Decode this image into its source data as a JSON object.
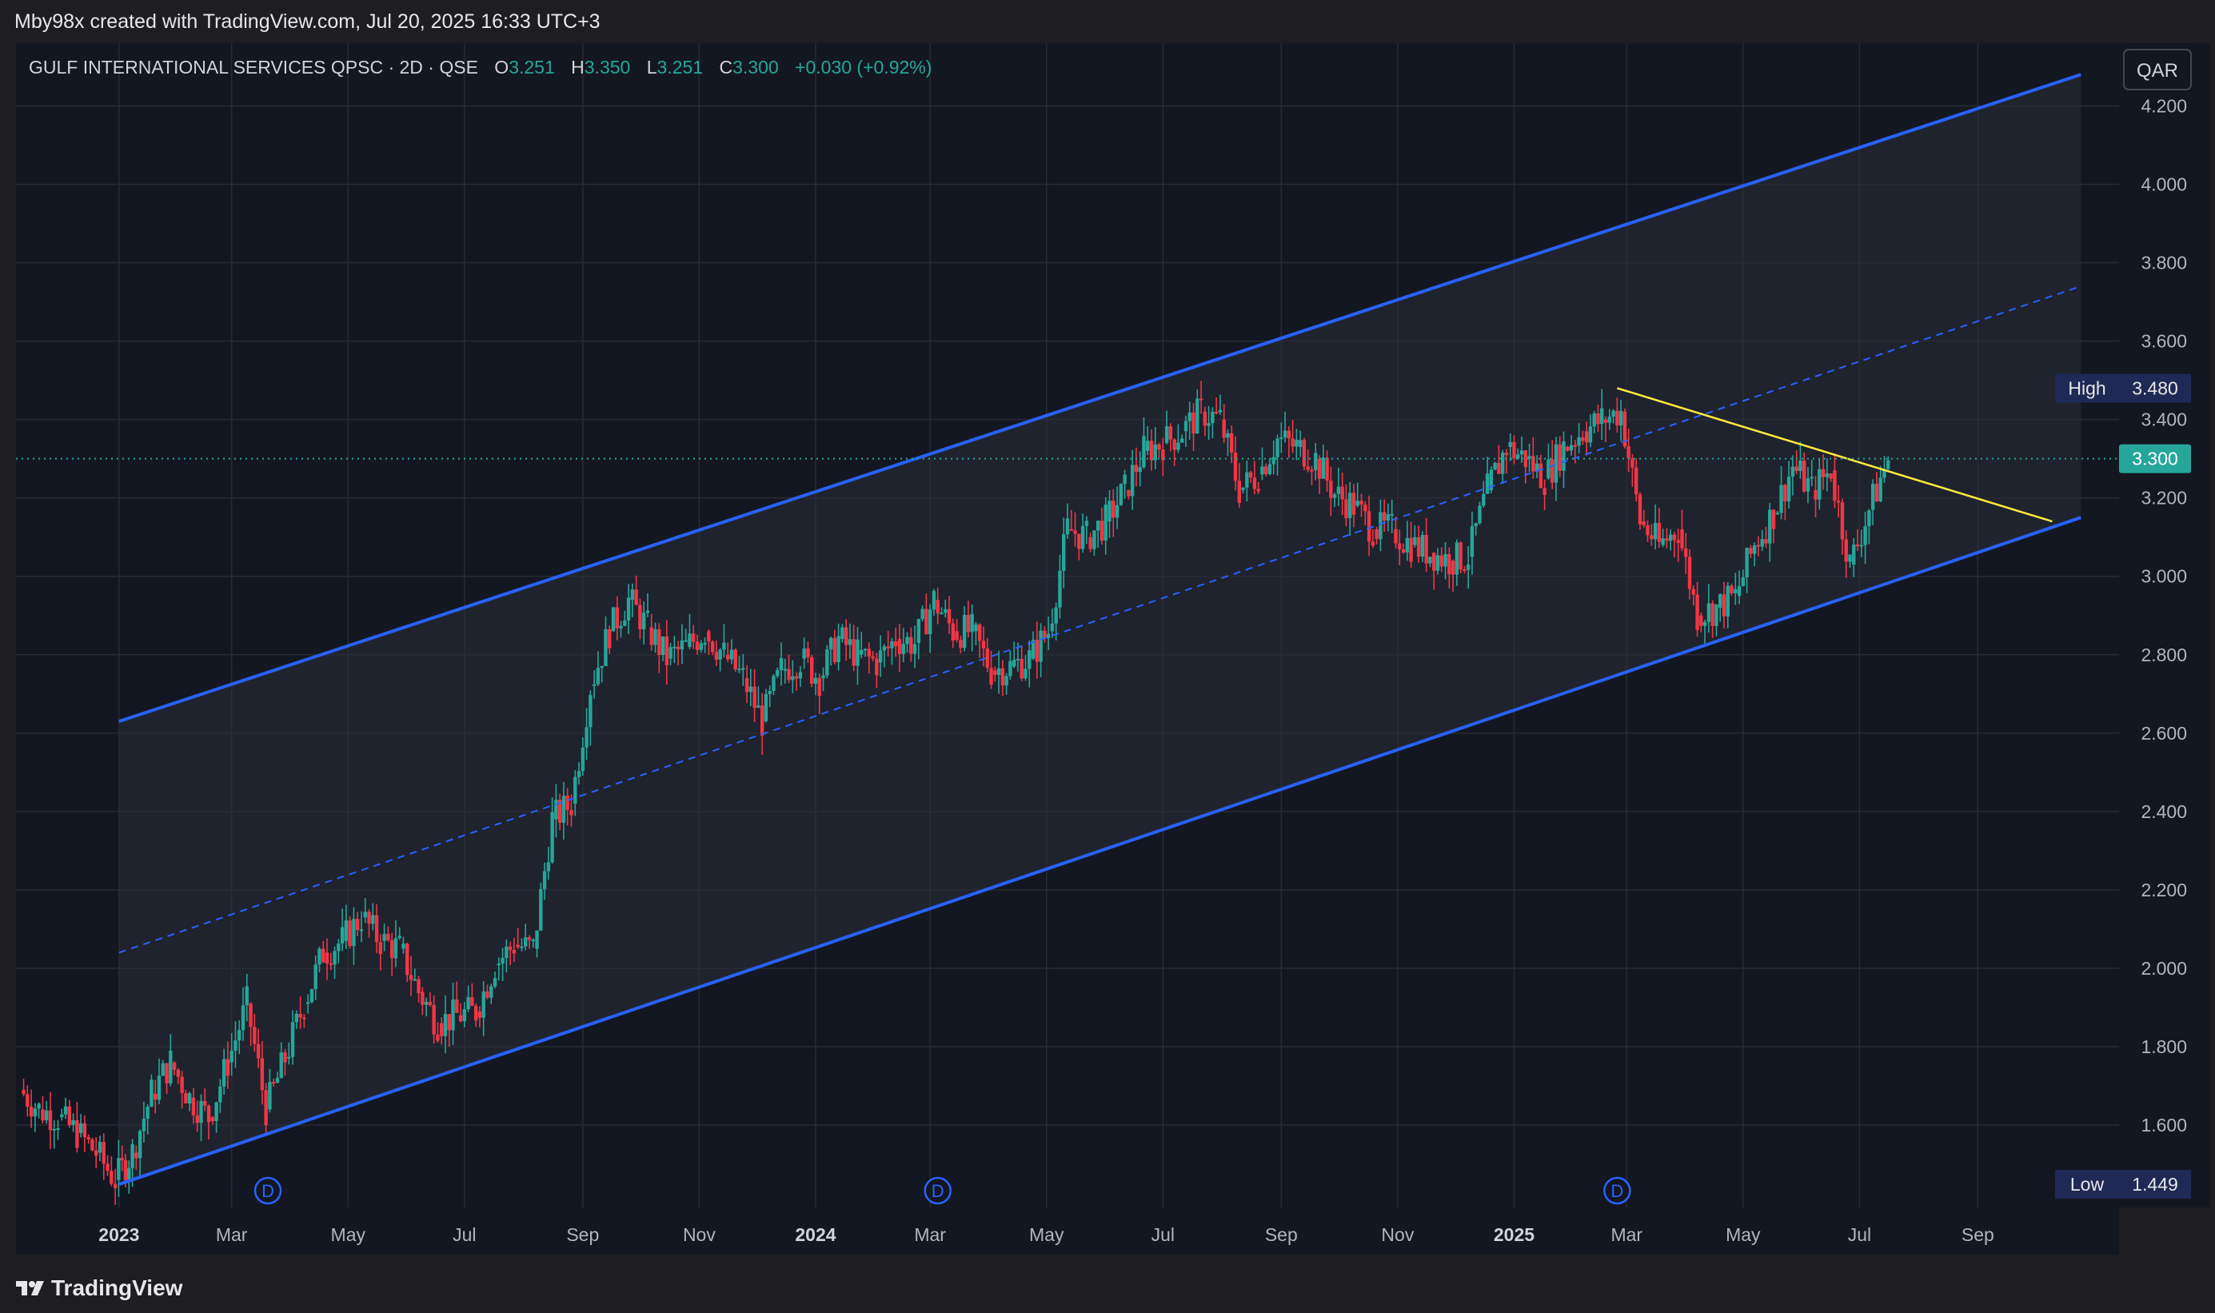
{
  "header": {
    "credit": "Mby98x created with TradingView.com, Jul 20, 2025 16:33 UTC+3"
  },
  "legend": {
    "symbol": "GULF INTERNATIONAL SERVICES QPSC · 2D · QSE",
    "o_label": "O",
    "o_value": "3.251",
    "h_label": "H",
    "h_value": "3.350",
    "l_label": "L",
    "l_value": "3.251",
    "c_label": "C",
    "c_value": "3.300",
    "change": "+0.030 (+0.92%)"
  },
  "footer": {
    "brand": "TradingView"
  },
  "colors": {
    "up": "#26a69a",
    "down": "#f23645",
    "channel": "#2962ff",
    "trendline": "#ffeb3b",
    "grid": "#2a2b30",
    "plot_bg": "#131722",
    "axis_text": "#b2b5be"
  },
  "chart_data": {
    "type": "candlestick",
    "currency": "QAR",
    "y_axis": {
      "ticks": [
        "4.200",
        "4.000",
        "3.800",
        "3.600",
        "3.400",
        "3.200",
        "3.000",
        "2.800",
        "2.600",
        "2.400",
        "2.200",
        "2.000",
        "1.800",
        "1.600"
      ],
      "range": [
        1.39,
        4.36
      ]
    },
    "x_axis": {
      "range": [
        "2022-11-08",
        "2025-11-14"
      ],
      "ticks": [
        {
          "date": "2023-01-01",
          "label": "2023",
          "bold": true
        },
        {
          "date": "2023-03-01",
          "label": "Mar"
        },
        {
          "date": "2023-05-01",
          "label": "May"
        },
        {
          "date": "2023-07-01",
          "label": "Jul"
        },
        {
          "date": "2023-09-01",
          "label": "Sep"
        },
        {
          "date": "2023-11-01",
          "label": "Nov"
        },
        {
          "date": "2024-01-01",
          "label": "2024",
          "bold": true
        },
        {
          "date": "2024-03-01",
          "label": "Mar"
        },
        {
          "date": "2024-05-01",
          "label": "May"
        },
        {
          "date": "2024-07-01",
          "label": "Jul"
        },
        {
          "date": "2024-09-01",
          "label": "Sep"
        },
        {
          "date": "2024-11-01",
          "label": "Nov"
        },
        {
          "date": "2025-01-01",
          "label": "2025",
          "bold": true
        },
        {
          "date": "2025-03-01",
          "label": "Mar"
        },
        {
          "date": "2025-05-01",
          "label": "May"
        },
        {
          "date": "2025-07-01",
          "label": "Jul"
        },
        {
          "date": "2025-09-01",
          "label": "Sep"
        }
      ]
    },
    "price_labels": [
      {
        "name": "High",
        "value": "3.480",
        "price": 3.48
      },
      {
        "name": "",
        "value": "3.300",
        "price": 3.3,
        "current": true
      },
      {
        "name": "Low",
        "value": "1.449",
        "price": 1.449
      }
    ],
    "close_series": [
      [
        "2022-11-10",
        1.69
      ],
      [
        "2022-11-20",
        1.64
      ],
      [
        "2022-11-30",
        1.62
      ],
      [
        "2022-12-10",
        1.58
      ],
      [
        "2022-12-20",
        1.53
      ],
      [
        "2022-12-30",
        1.46
      ],
      [
        "2023-01-08",
        1.53
      ],
      [
        "2023-01-18",
        1.68
      ],
      [
        "2023-01-28",
        1.76
      ],
      [
        "2023-02-07",
        1.67
      ],
      [
        "2023-02-17",
        1.62
      ],
      [
        "2023-02-27",
        1.76
      ],
      [
        "2023-03-09",
        1.91
      ],
      [
        "2023-03-19",
        1.64
      ],
      [
        "2023-03-29",
        1.77
      ],
      [
        "2023-04-08",
        1.91
      ],
      [
        "2023-04-18",
        2.04
      ],
      [
        "2023-04-28",
        2.07
      ],
      [
        "2023-05-08",
        2.13
      ],
      [
        "2023-05-18",
        2.07
      ],
      [
        "2023-05-28",
        2.05
      ],
      [
        "2023-06-07",
        1.94
      ],
      [
        "2023-06-17",
        1.86
      ],
      [
        "2023-06-27",
        1.88
      ],
      [
        "2023-07-07",
        1.89
      ],
      [
        "2023-07-17",
        2.01
      ],
      [
        "2023-07-27",
        2.06
      ],
      [
        "2023-08-06",
        2.05
      ],
      [
        "2023-08-16",
        2.38
      ],
      [
        "2023-08-26",
        2.42
      ],
      [
        "2023-09-05",
        2.72
      ],
      [
        "2023-09-15",
        2.86
      ],
      [
        "2023-09-25",
        2.94
      ],
      [
        "2023-10-05",
        2.87
      ],
      [
        "2023-10-15",
        2.79
      ],
      [
        "2023-10-25",
        2.82
      ],
      [
        "2023-11-04",
        2.86
      ],
      [
        "2023-11-14",
        2.8
      ],
      [
        "2023-11-24",
        2.74
      ],
      [
        "2023-12-04",
        2.63
      ],
      [
        "2023-12-14",
        2.76
      ],
      [
        "2023-12-24",
        2.79
      ],
      [
        "2024-01-03",
        2.74
      ],
      [
        "2024-01-13",
        2.84
      ],
      [
        "2024-01-23",
        2.8
      ],
      [
        "2024-02-02",
        2.78
      ],
      [
        "2024-02-12",
        2.84
      ],
      [
        "2024-02-22",
        2.83
      ],
      [
        "2024-03-03",
        2.94
      ],
      [
        "2024-03-13",
        2.86
      ],
      [
        "2024-03-23",
        2.86
      ],
      [
        "2024-04-02",
        2.76
      ],
      [
        "2024-04-12",
        2.77
      ],
      [
        "2024-04-22",
        2.79
      ],
      [
        "2024-05-02",
        2.86
      ],
      [
        "2024-05-12",
        3.12
      ],
      [
        "2024-05-22",
        3.1
      ],
      [
        "2024-06-01",
        3.14
      ],
      [
        "2024-06-11",
        3.22
      ],
      [
        "2024-06-21",
        3.32
      ],
      [
        "2024-07-01",
        3.34
      ],
      [
        "2024-07-11",
        3.37
      ],
      [
        "2024-07-21",
        3.42
      ],
      [
        "2024-07-31",
        3.4
      ],
      [
        "2024-08-10",
        3.22
      ],
      [
        "2024-08-20",
        3.26
      ],
      [
        "2024-08-30",
        3.35
      ],
      [
        "2024-09-09",
        3.33
      ],
      [
        "2024-09-19",
        3.3
      ],
      [
        "2024-09-29",
        3.21
      ],
      [
        "2024-10-09",
        3.18
      ],
      [
        "2024-10-19",
        3.12
      ],
      [
        "2024-10-29",
        3.12
      ],
      [
        "2024-11-08",
        3.08
      ],
      [
        "2024-11-18",
        3.06
      ],
      [
        "2024-11-28",
        3.04
      ],
      [
        "2024-12-08",
        3.05
      ],
      [
        "2024-12-18",
        3.22
      ],
      [
        "2024-12-28",
        3.33
      ],
      [
        "2025-01-07",
        3.3
      ],
      [
        "2025-01-17",
        3.25
      ],
      [
        "2025-01-27",
        3.33
      ],
      [
        "2025-02-06",
        3.37
      ],
      [
        "2025-02-16",
        3.4
      ],
      [
        "2025-02-26",
        3.42
      ],
      [
        "2025-03-08",
        3.14
      ],
      [
        "2025-03-18",
        3.08
      ],
      [
        "2025-03-28",
        3.12
      ],
      [
        "2025-04-07",
        2.9
      ],
      [
        "2025-04-17",
        2.92
      ],
      [
        "2025-04-27",
        2.95
      ],
      [
        "2025-05-07",
        3.08
      ],
      [
        "2025-05-17",
        3.16
      ],
      [
        "2025-05-27",
        3.28
      ],
      [
        "2025-06-06",
        3.22
      ],
      [
        "2025-06-16",
        3.27
      ],
      [
        "2025-06-26",
        3.03
      ],
      [
        "2025-07-06",
        3.17
      ],
      [
        "2025-07-16",
        3.3
      ]
    ],
    "annotations": {
      "channel_upper": [
        [
          "2023-01-01",
          2.63
        ],
        [
          "2025-10-25",
          4.28
        ]
      ],
      "channel_mid": [
        [
          "2023-01-01",
          2.04
        ],
        [
          "2025-10-25",
          3.74
        ]
      ],
      "channel_lower": [
        [
          "2023-01-01",
          1.449
        ],
        [
          "2025-10-25",
          3.15
        ]
      ],
      "trendline": [
        [
          "2025-02-24",
          3.48
        ],
        [
          "2025-10-10",
          3.14
        ]
      ],
      "dividend_markers": [
        {
          "date": "2023-03-20",
          "label": "D"
        },
        {
          "date": "2024-03-05",
          "label": "D"
        },
        {
          "date": "2025-02-24",
          "label": "D"
        }
      ]
    }
  }
}
